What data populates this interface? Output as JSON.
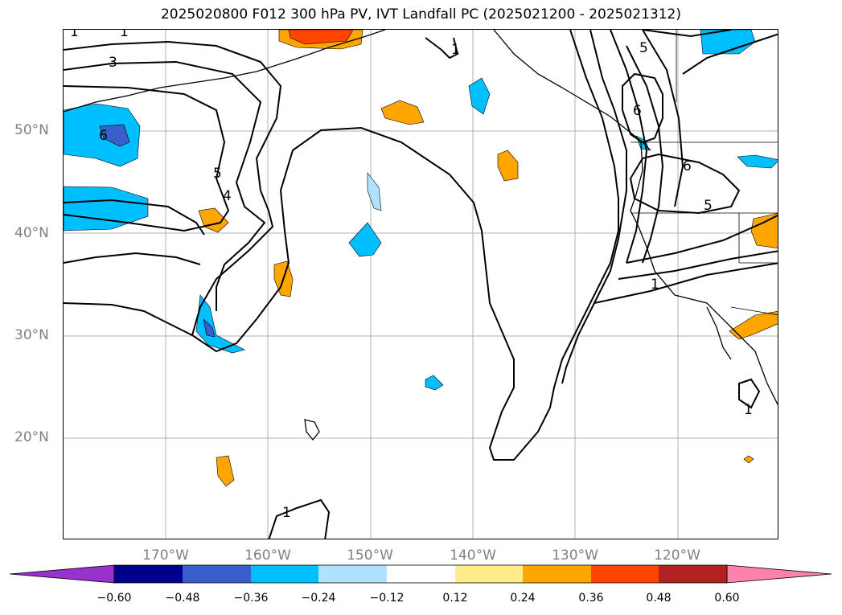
{
  "title": "2025020800 F012 300 hPa PV, IVT Landfall PC (2025021200 - 2025021312)",
  "lat_labels": [
    "50°N",
    "40°N",
    "30°N",
    "20°N"
  ],
  "lon_labels": [
    "170°W",
    "160°W",
    "150°W",
    "140°W",
    "130°W",
    "120°W"
  ],
  "contour_labels": [
    "1",
    "1",
    "3",
    "6",
    "5",
    "4",
    "1",
    "5",
    "6",
    "6",
    "5",
    "1",
    "1",
    "1"
  ],
  "colorbar": {
    "ticks": [
      "−0.60",
      "−0.48",
      "−0.36",
      "−0.24",
      "−0.12",
      "0.12",
      "0.24",
      "0.36",
      "0.48",
      "0.60"
    ],
    "colors": [
      "#9932cc",
      "#00008b",
      "#3a5fcd",
      "#00bfff",
      "#b0e2ff",
      "#ffffff",
      "#ffec8b",
      "#ffa500",
      "#ff4500",
      "#b22222",
      "#ff82ab"
    ]
  }
}
